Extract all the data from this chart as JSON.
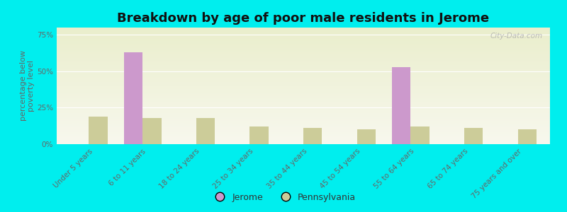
{
  "title": "Breakdown by age of poor male residents in Jerome",
  "ylabel": "percentage below\npoverty level",
  "categories": [
    "Under 5 years",
    "6 to 11 years",
    "18 to 24 years",
    "25 to 34 years",
    "35 to 44 years",
    "45 to 54 years",
    "55 to 64 years",
    "65 to 74 years",
    "75 years and over"
  ],
  "jerome_values": [
    0,
    63,
    0,
    0,
    0,
    0,
    53,
    0,
    0
  ],
  "pennsylvania_values": [
    19,
    18,
    18,
    12,
    11,
    10,
    12,
    11,
    10
  ],
  "jerome_color": "#cc99cc",
  "pennsylvania_color": "#cccc99",
  "background_color": "#00eeee",
  "plot_bg_gradient_top": "#eaeecc",
  "plot_bg_gradient_bottom": "#f8f8ee",
  "yticks": [
    0,
    25,
    50,
    75
  ],
  "ylim": [
    0,
    80
  ],
  "bar_width": 0.35,
  "title_fontsize": 13,
  "axis_label_fontsize": 8,
  "tick_label_fontsize": 7.5,
  "legend_fontsize": 9,
  "watermark": "City-Data.com"
}
